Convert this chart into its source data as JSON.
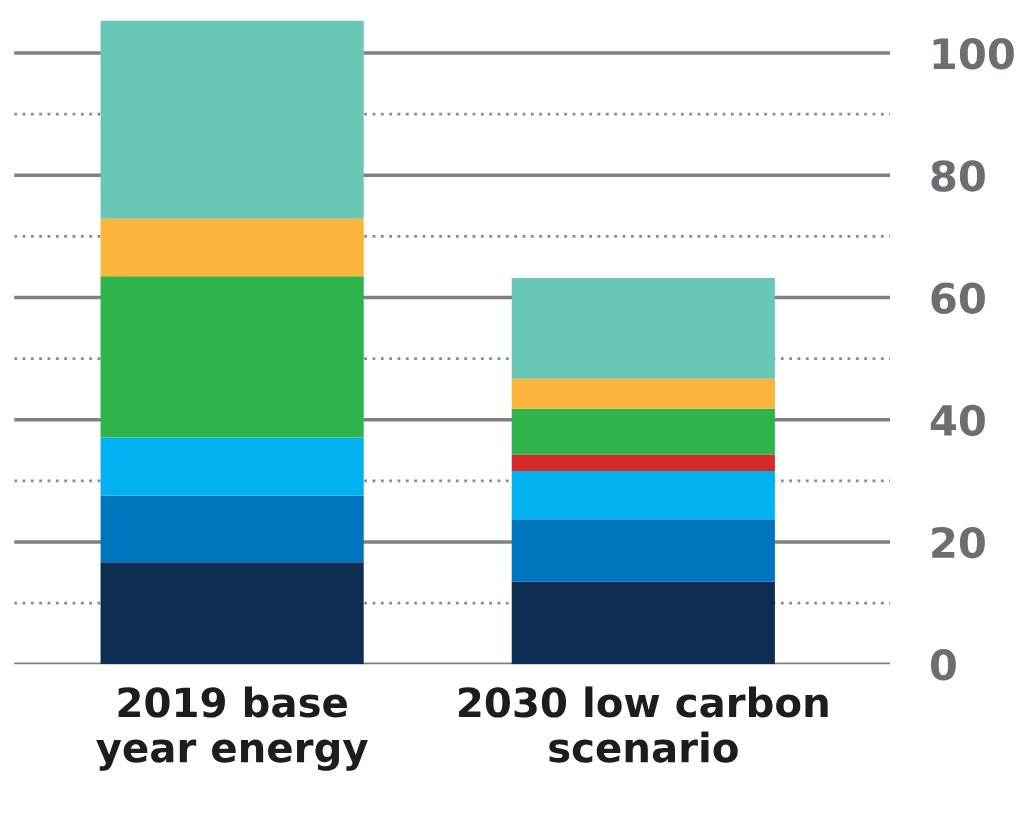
{
  "chart_data": {
    "type": "bar",
    "stacked": true,
    "categories": [
      "2019 base\nyear energy",
      "2030 low carbon\nscenario"
    ],
    "series": [
      {
        "color": "#0f2c52",
        "values": [
          16.7,
          13.5
        ]
      },
      {
        "color": "#0075bf",
        "values": [
          10.9,
          10.2
        ]
      },
      {
        "color": "#00b2ef",
        "values": [
          9.5,
          7.9
        ]
      },
      {
        "color": "#d42a2a",
        "values": [
          null,
          2.7
        ]
      },
      {
        "color": "#2fb34b",
        "values": [
          26.4,
          7.5
        ]
      },
      {
        "color": "#fbb53c",
        "values": [
          9.4,
          4.9
        ]
      },
      {
        "color": "#69c7b5",
        "values": [
          32.4,
          16.5
        ]
      }
    ],
    "ylim": [
      0,
      106
    ],
    "yticks": [
      0,
      {
        "value": 10,
        "label": null
      },
      20,
      {
        "value": 30,
        "label": null
      },
      40,
      {
        "value": 50,
        "label": null
      },
      60,
      {
        "value": 70,
        "label": null
      },
      80,
      {
        "value": 90,
        "label": null
      },
      100
    ],
    "grid": "y",
    "legend": false
  }
}
